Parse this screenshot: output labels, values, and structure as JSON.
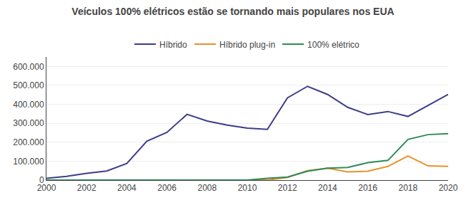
{
  "chart_data": {
    "type": "line",
    "title": "Veículos 100% elétricos estão se tornando mais populares nos EUA",
    "x": [
      2000,
      2001,
      2002,
      2003,
      2004,
      2005,
      2006,
      2007,
      2008,
      2009,
      2010,
      2011,
      2012,
      2013,
      2014,
      2015,
      2016,
      2017,
      2018,
      2019,
      2020
    ],
    "series": [
      {
        "name": "Híbrido",
        "color": "#3C3C8C",
        "values": [
          9000,
          20000,
          36000,
          48000,
          88000,
          205000,
          252000,
          347000,
          312000,
          290000,
          274000,
          268000,
          434000,
          495000,
          452000,
          384000,
          346000,
          362000,
          336000,
          395000,
          452000
        ]
      },
      {
        "name": "Híbrido plug-in",
        "color": "#E8922A",
        "values": [
          0,
          0,
          0,
          0,
          0,
          0,
          0,
          0,
          0,
          0,
          0,
          0,
          14000,
          50000,
          63000,
          43000,
          47000,
          72000,
          127000,
          75000,
          72000
        ]
      },
      {
        "name": "100% elétrico",
        "color": "#2E8B57",
        "values": [
          0,
          0,
          0,
          0,
          0,
          0,
          0,
          0,
          0,
          0,
          0,
          9000,
          16000,
          47000,
          63000,
          67000,
          92000,
          104000,
          215000,
          240000,
          245000
        ]
      }
    ],
    "xlim": [
      2000,
      2020
    ],
    "xticks": [
      2000,
      2002,
      2004,
      2006,
      2008,
      2010,
      2012,
      2014,
      2016,
      2018,
      2020
    ],
    "ylim": [
      0,
      650000
    ],
    "yticks": [
      0,
      {
        "value": 100000,
        "label": "100.000"
      },
      {
        "value": 200000,
        "label": "200.000"
      },
      {
        "value": 300000,
        "label": "300.000"
      },
      {
        "value": 400000,
        "label": "400.000"
      },
      {
        "value": 500000,
        "label": "500.000"
      },
      {
        "value": 600000,
        "label": "600.000"
      }
    ],
    "grid": "y",
    "legend": "top"
  }
}
